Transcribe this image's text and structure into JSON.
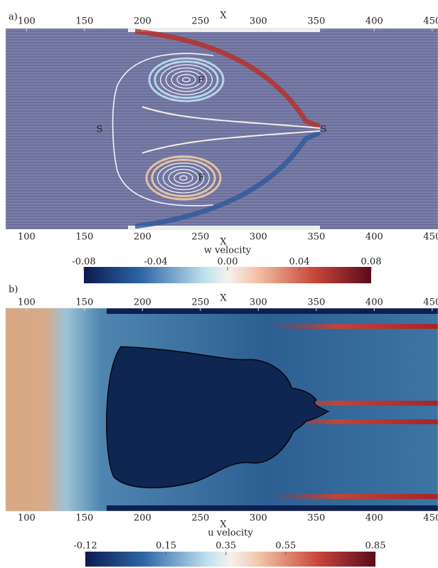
{
  "chart_data": [
    {
      "type": "streamlines",
      "panel_label": "a)",
      "xlabel": "X",
      "xlim": [
        82,
        455
      ],
      "xticks": [
        100,
        150,
        200,
        250,
        300,
        350,
        400,
        450
      ],
      "annotations": [
        "S",
        "F",
        "S",
        "F"
      ],
      "colorbar": {
        "label": "w velocity",
        "lim": [
          -0.08,
          0.08
        ],
        "ticks": [
          -0.08,
          -0.04,
          {
            "value": 0,
            "label": "0.00"
          },
          0.04,
          0.08
        ]
      }
    },
    {
      "type": "contour",
      "panel_label": "b)",
      "xlabel": "X",
      "xlim": [
        82,
        455
      ],
      "xticks": [
        100,
        150,
        200,
        250,
        300,
        350,
        400,
        450
      ],
      "colorbar": {
        "label": "u velocity",
        "lim": [
          -0.12,
          0.85
        ],
        "ticks": [
          -0.12,
          0.15,
          0.35,
          0.55,
          0.85
        ]
      }
    }
  ]
}
